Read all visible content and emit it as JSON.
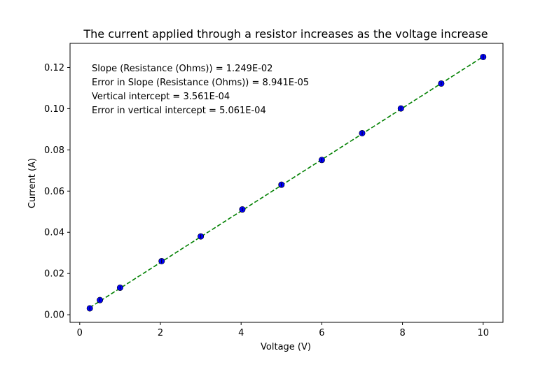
{
  "chart_data": {
    "type": "scatter",
    "title": "The current applied through a resistor increases as the voltage increase",
    "xlabel": "Voltage (V)",
    "ylabel": "Current (A)",
    "xlim": [
      -0.24,
      10.49
    ],
    "ylim": [
      -0.0037,
      0.1317
    ],
    "x_ticks": [
      0,
      2,
      4,
      6,
      8,
      10
    ],
    "x_tick_labels": [
      "0",
      "2",
      "4",
      "6",
      "8",
      "10"
    ],
    "y_ticks": [
      0.0,
      0.02,
      0.04,
      0.06,
      0.08,
      0.1,
      0.12
    ],
    "y_tick_labels": [
      "0.00",
      "0.02",
      "0.04",
      "0.06",
      "0.08",
      "0.10",
      "0.12"
    ],
    "grid": false,
    "series": [
      {
        "marker": "circle",
        "x": [
          0.25,
          0.5,
          1.0,
          2.03,
          3.0,
          4.03,
          5.0,
          6.0,
          7.0,
          7.96,
          8.96,
          10.0
        ],
        "y": [
          0.0031,
          0.0071,
          0.0131,
          0.026,
          0.038,
          0.0511,
          0.0631,
          0.0751,
          0.0881,
          0.1001,
          0.1122,
          0.1251
        ],
        "error_bar_y": [
          0.0002,
          0.0002,
          0.0002,
          0.0002,
          0.0002,
          0.0002,
          0.0002,
          0.0002,
          0.0002,
          0.0002,
          0.0002,
          0.0002
        ],
        "color": "#0000ff"
      }
    ],
    "fit_line": {
      "style": "dashed",
      "color": "#008000",
      "slope": 0.01249,
      "intercept": 0.0003561,
      "x_range": [
        0.25,
        10.0
      ]
    },
    "annotations": [
      "Slope (Resistance (Ohms)) = 1.249E-02",
      "Error in Slope (Resistance (Ohms)) = 8.941E-05",
      "Vertical intercept = 3.561E-04",
      "Error in vertical intercept = 5.061E-04"
    ]
  }
}
